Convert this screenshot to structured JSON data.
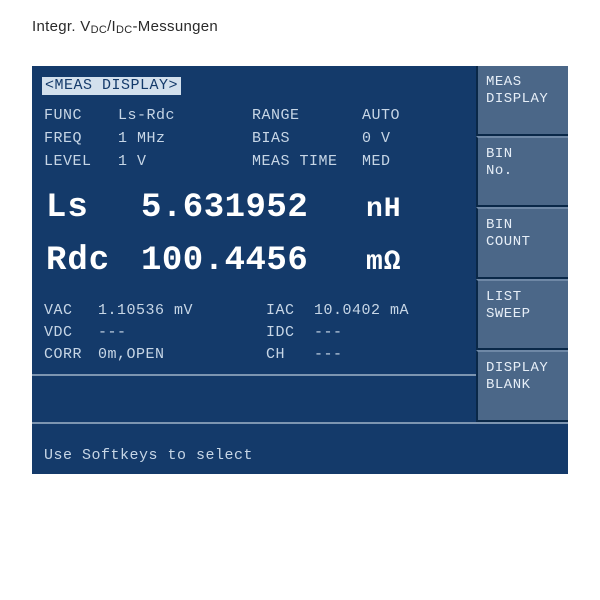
{
  "caption": {
    "prefix": "Integr. V",
    "sub1": "DC",
    "mid": "/I",
    "sub2": "DC",
    "suffix": "-Messungen"
  },
  "colors": {
    "screen_bg": "#143a6a",
    "screen_fg": "#c7d6e6",
    "bright_fg": "#ffffff",
    "header_bg": "#d3e0ed",
    "header_fg": "#143a6a",
    "softkey_bg": "#4b6788",
    "softkey_fg": "#e6eef7",
    "border_dark": "#0a2848",
    "border_light": "#6f88a6",
    "separator": "#7d95b1"
  },
  "header": "<MEAS DISPLAY>",
  "params": [
    {
      "l": "FUNC",
      "v": "Ls-Rdc",
      "l2": "RANGE",
      "v2": "AUTO"
    },
    {
      "l": "FREQ",
      "v": "1 MHz",
      "l2": "BIAS",
      "v2": "0 V"
    },
    {
      "l": "LEVEL",
      "v": "1 V",
      "l2": "MEAS TIME",
      "v2": "MED"
    }
  ],
  "main": [
    {
      "name": "Ls",
      "value": "5.631952",
      "unit": "nH"
    },
    {
      "name": "Rdc",
      "value": "100.4456",
      "unit": "mΩ"
    }
  ],
  "sub": [
    {
      "l": "VAC",
      "v": "1.10536 mV",
      "l2": "IAC",
      "v2": "10.0402 mA"
    },
    {
      "l": "VDC",
      "v": "---",
      "l2": "IDC",
      "v2": "---"
    },
    {
      "l": "CORR",
      "v": "0m,OPEN",
      "l2": "CH",
      "v2": "---"
    }
  ],
  "status": "Use Softkeys to select",
  "softkeys": [
    "MEAS\nDISPLAY",
    "BIN\nNo.",
    "BIN\nCOUNT",
    "LIST\nSWEEP",
    "DISPLAY\nBLANK"
  ]
}
